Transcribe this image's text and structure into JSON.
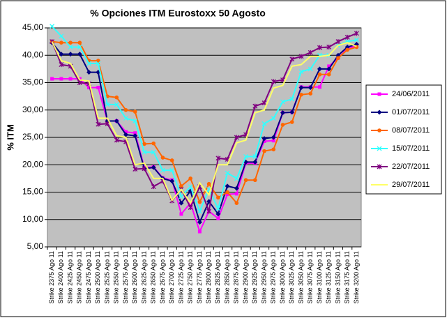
{
  "chart_data": {
    "type": "line",
    "title": "% Opciones ITM Eurostoxx 50 Agosto",
    "y_label": "% ITM",
    "categories": [
      "Strike 2375 Ago 11",
      "Strike 2400 Ago 11",
      "Strike 2425 Ago 11",
      "Strike 2450 Ago 11",
      "Strike 2475 Ago 11",
      "Strike 2500 Ago 11",
      "Strike 2525 Ago 11",
      "Strike 2550 Ago 11",
      "Strike 2575 Ago 11",
      "Strike 2600 Ago 11",
      "Strike 2625 Ago 11",
      "Strike 2650 Ago 11",
      "Strike 2675 Ago 11",
      "Strike 2700 Ago 11",
      "Strike 2725 Ago 11",
      "Strike 2750 Ago 11",
      "Strike 2775 Ago 11",
      "Strike 2800 Ago 11",
      "Strike 2825 Ago 11",
      "Strike 2850 Ago 11",
      "Strike 2875 Ago 11",
      "Strike 2900 Ago 11",
      "Strike 2925 Ago 11",
      "Strike 2950 Ago 11",
      "Strike 2975 Ago 11",
      "Strike 3000 Ago 11",
      "Strike 3025 Ago 11",
      "Strike 3050 Ago 11",
      "Strike 3075 Ago 11",
      "Strike 3100 Ago 11",
      "Strike 3125 Ago 11",
      "Strike 3150 Ago 11",
      "Strike 3175 Ago 11",
      "Strike 3200 Ago 11"
    ],
    "series": [
      {
        "name": "24/06/2011",
        "color": "#ff00ff",
        "marker": "square",
        "values": [
          35.7,
          35.7,
          35.7,
          35.7,
          34.1,
          34.1,
          28,
          28,
          26,
          25.8,
          19.5,
          19.6,
          17.6,
          17.2,
          11,
          13,
          7.8,
          11.5,
          10.2,
          14.6,
          14.7,
          20.3,
          20.3,
          24.3,
          24.4,
          29.5,
          29.6,
          34.2,
          34.2,
          34.2,
          38,
          39.5,
          41.2,
          41.8
        ]
      },
      {
        "name": "01/07/2011",
        "color": "#000080",
        "marker": "diamond",
        "values": [
          42.3,
          40.2,
          40.2,
          40.2,
          36.9,
          36.9,
          28,
          28,
          25.5,
          25.3,
          19.3,
          19.5,
          17.5,
          17,
          13,
          15.2,
          9.5,
          13.3,
          11,
          16.1,
          15.7,
          20.5,
          20.5,
          24.8,
          25,
          29.5,
          29.6,
          34.1,
          34.1,
          37.5,
          37.5,
          40,
          41.5,
          42
        ]
      },
      {
        "name": "08/07/2011",
        "color": "#ff6600",
        "marker": "circle",
        "values": [
          42.5,
          42.3,
          42.3,
          42.3,
          39,
          39,
          32.5,
          32.3,
          30,
          29.7,
          23.8,
          23.9,
          21.3,
          20.8,
          16.1,
          17.5,
          13.2,
          16.5,
          14,
          15,
          13,
          17.2,
          17.2,
          22.5,
          22.8,
          27.3,
          27.8,
          32.8,
          33,
          36.5,
          36.5,
          39.5,
          41,
          41.5
        ]
      },
      {
        "name": "15/07/2011",
        "color": "#33ffff",
        "marker": "x",
        "values": [
          45.3,
          43.5,
          41.5,
          41.5,
          38.5,
          38.5,
          31,
          31,
          28.5,
          28,
          22.3,
          22.3,
          19,
          19,
          14.2,
          16,
          11.5,
          15.5,
          12,
          18.5,
          17.5,
          21.5,
          21.5,
          27.5,
          28.5,
          31.5,
          32,
          37,
          37.5,
          40,
          40,
          41.8,
          42.5,
          42.8
        ]
      },
      {
        "name": "22/07/2011",
        "color": "#800080",
        "marker": "star",
        "values": [
          42.5,
          38.3,
          38,
          35,
          34.8,
          27.4,
          27.5,
          24.5,
          24.2,
          19.2,
          19.3,
          16,
          17,
          13.4,
          15.5,
          12.2,
          16,
          11.5,
          21.2,
          21,
          25,
          25.5,
          30.7,
          31.3,
          35.2,
          35.5,
          39.3,
          39.8,
          40.5,
          41.4,
          41.5,
          42.5,
          43.3,
          44
        ]
      },
      {
        "name": "29/07/2011",
        "color": "#ffff66",
        "marker": "none",
        "values": [
          42.5,
          39,
          38.5,
          35.5,
          35.3,
          28.5,
          28.5,
          25.3,
          25,
          20,
          20.3,
          17.5,
          17.5,
          13.5,
          15.5,
          13,
          16.7,
          14.5,
          20,
          20,
          24,
          24.5,
          29.5,
          30,
          34,
          34.5,
          38,
          38.3,
          39.8,
          39.8,
          40,
          41.8,
          42.3,
          41.6
        ]
      }
    ],
    "ylim": [
      5,
      45
    ],
    "yticks": [
      {
        "value": 5,
        "label": "5,00"
      },
      {
        "value": 10,
        "label": "10,00"
      },
      {
        "value": 15,
        "label": "15,00"
      },
      {
        "value": 20,
        "label": "20,00"
      },
      {
        "value": 25,
        "label": "25,00"
      },
      {
        "value": 30,
        "label": "30,00"
      },
      {
        "value": 35,
        "label": "35,00"
      },
      {
        "value": 40,
        "label": "40,00"
      },
      {
        "value": 45,
        "label": "45,00"
      }
    ],
    "grid": true,
    "plot_background": "#c0c0c0",
    "legend": "right"
  }
}
